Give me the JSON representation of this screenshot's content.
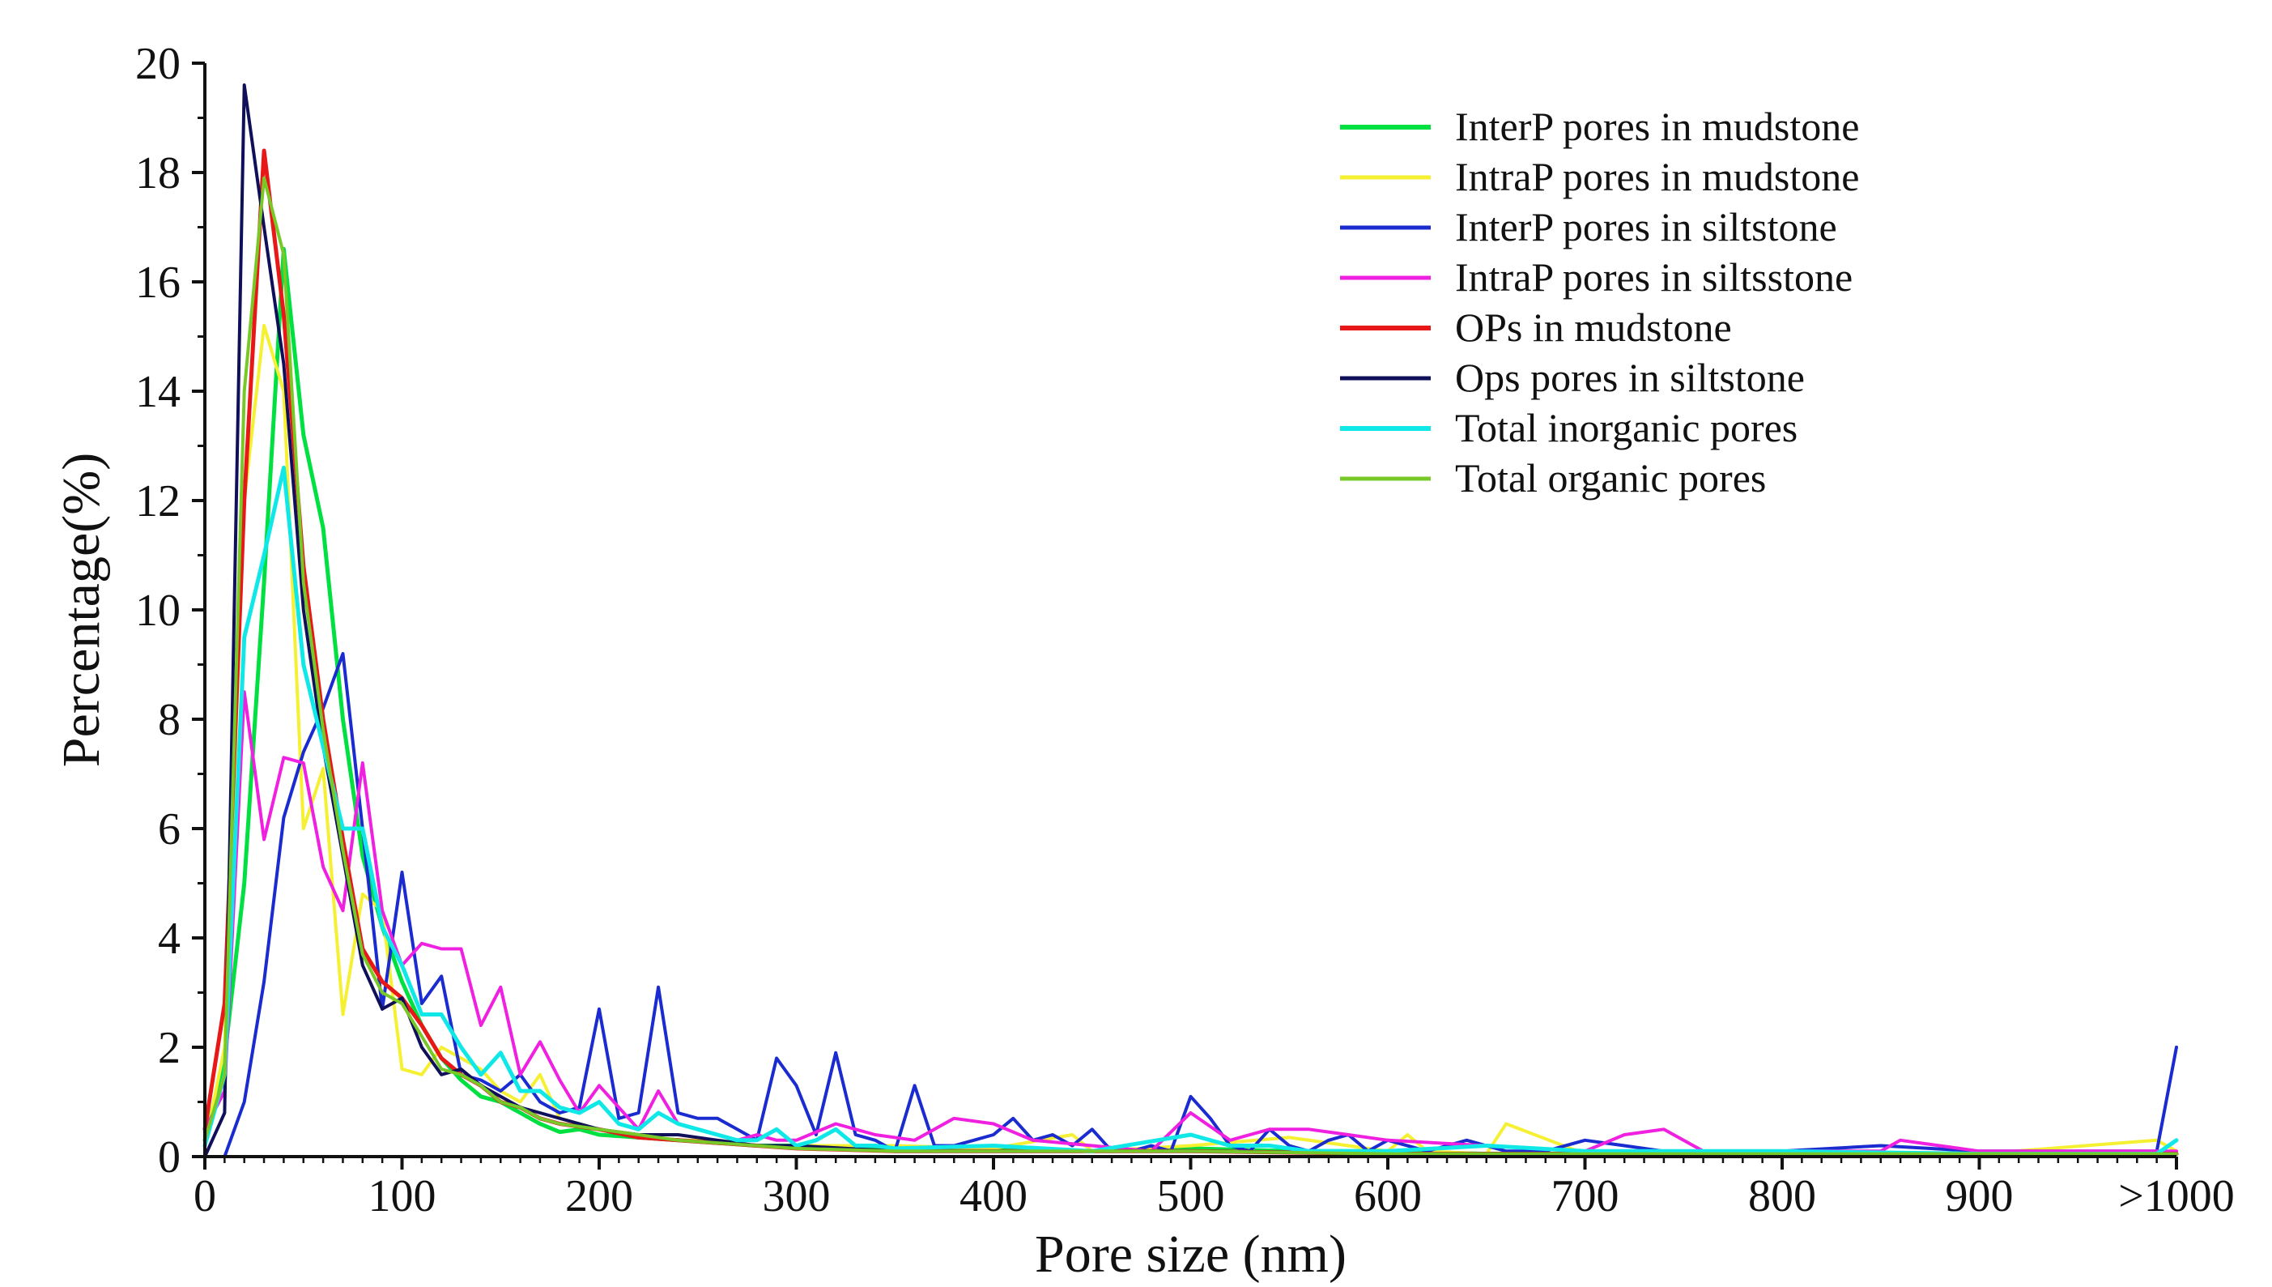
{
  "chart_data": {
    "type": "line",
    "title": "",
    "xlabel": "Pore size (nm)",
    "ylabel": "Percentage(%)",
    "xlim": [
      0,
      1000
    ],
    "ylim": [
      0,
      20
    ],
    "x_ticks": [
      0,
      100,
      200,
      300,
      400,
      500,
      600,
      700,
      800,
      900,
      1000
    ],
    "x_tick_labels": [
      "0",
      "100",
      "200",
      "300",
      "400",
      "500",
      "600",
      "700",
      "800",
      "900",
      ">1000"
    ],
    "y_ticks": [
      0,
      2,
      4,
      6,
      8,
      10,
      12,
      14,
      16,
      18,
      20
    ],
    "y_tick_labels": [
      "0",
      "2",
      "4",
      "6",
      "8",
      "10",
      "12",
      "14",
      "16",
      "18",
      "20"
    ],
    "legend_position": "top-right",
    "grid": false,
    "series": [
      {
        "name": "InterP pores in mudstone",
        "color": "#00e040",
        "stroke_width": 5,
        "x": [
          0,
          10,
          20,
          30,
          40,
          50,
          60,
          70,
          80,
          90,
          100,
          110,
          120,
          130,
          140,
          150,
          160,
          170,
          180,
          190,
          200,
          220,
          240,
          260,
          280,
          300,
          350,
          400,
          450,
          500,
          550,
          600,
          650,
          700,
          800,
          900,
          1000
        ],
        "values": [
          0.3,
          1.8,
          5.0,
          10.5,
          16.6,
          13.2,
          11.5,
          8.0,
          5.5,
          4.2,
          3.2,
          2.4,
          1.8,
          1.4,
          1.1,
          1.0,
          0.8,
          0.6,
          0.45,
          0.5,
          0.4,
          0.35,
          0.3,
          0.25,
          0.2,
          0.2,
          0.15,
          0.15,
          0.1,
          0.15,
          0.1,
          0.1,
          0.05,
          0.05,
          0.05,
          0.05,
          0.05
        ]
      },
      {
        "name": "IntraP pores in mudstone",
        "color": "#f5f032",
        "stroke_width": 4,
        "x": [
          0,
          10,
          20,
          30,
          40,
          50,
          60,
          70,
          80,
          90,
          100,
          110,
          120,
          130,
          140,
          150,
          160,
          170,
          180,
          190,
          200,
          220,
          240,
          260,
          280,
          300,
          350,
          400,
          440,
          450,
          500,
          550,
          600,
          610,
          620,
          650,
          660,
          700,
          800,
          900,
          990,
          1000
        ],
        "values": [
          0.2,
          2.0,
          12.0,
          15.2,
          14.0,
          6.0,
          7.1,
          2.6,
          4.8,
          4.5,
          1.6,
          1.5,
          2.0,
          1.8,
          1.6,
          1.2,
          1.0,
          1.5,
          0.7,
          0.6,
          0.5,
          0.4,
          0.3,
          0.3,
          0.2,
          0.2,
          0.2,
          0.15,
          0.4,
          0.1,
          0.2,
          0.35,
          0.1,
          0.4,
          0.1,
          0.05,
          0.6,
          0.05,
          0.05,
          0.05,
          0.3,
          0.1
        ]
      },
      {
        "name": "InterP pores in siltstone",
        "color": "#1a2bd0",
        "stroke_width": 4,
        "x": [
          0,
          10,
          20,
          30,
          40,
          50,
          60,
          70,
          80,
          90,
          100,
          110,
          120,
          130,
          140,
          150,
          160,
          170,
          180,
          190,
          200,
          210,
          220,
          230,
          240,
          250,
          260,
          270,
          280,
          290,
          300,
          310,
          320,
          330,
          340,
          350,
          360,
          370,
          380,
          390,
          400,
          410,
          420,
          430,
          440,
          450,
          460,
          470,
          480,
          490,
          500,
          510,
          520,
          530,
          540,
          550,
          560,
          570,
          580,
          590,
          600,
          620,
          640,
          660,
          680,
          700,
          720,
          740,
          760,
          800,
          850,
          900,
          950,
          990,
          1000
        ],
        "values": [
          0,
          0,
          1.0,
          3.2,
          6.2,
          7.4,
          8.2,
          9.2,
          6.0,
          2.7,
          5.2,
          2.8,
          3.3,
          1.5,
          1.4,
          1.2,
          1.5,
          1.0,
          0.8,
          0.9,
          2.7,
          0.7,
          0.8,
          3.1,
          0.8,
          0.7,
          0.7,
          0.5,
          0.3,
          1.8,
          1.3,
          0.4,
          1.9,
          0.4,
          0.3,
          0.1,
          1.3,
          0.2,
          0.2,
          0.3,
          0.4,
          0.7,
          0.3,
          0.4,
          0.2,
          0.5,
          0.1,
          0.1,
          0.2,
          0.1,
          1.1,
          0.7,
          0.2,
          0.1,
          0.5,
          0.2,
          0.1,
          0.3,
          0.4,
          0.1,
          0.3,
          0.1,
          0.3,
          0.1,
          0.1,
          0.3,
          0.2,
          0.1,
          0.1,
          0.1,
          0.2,
          0.1,
          0.1,
          0.1,
          2.0
        ]
      },
      {
        "name": "IntraP pores in siltsstone",
        "color": "#f020e0",
        "stroke_width": 4,
        "x": [
          0,
          10,
          20,
          30,
          40,
          50,
          60,
          70,
          80,
          90,
          100,
          110,
          120,
          130,
          140,
          150,
          160,
          170,
          180,
          190,
          200,
          210,
          220,
          230,
          240,
          250,
          260,
          270,
          280,
          290,
          300,
          320,
          340,
          360,
          380,
          400,
          420,
          450,
          480,
          500,
          520,
          540,
          560,
          580,
          600,
          650,
          700,
          720,
          740,
          760,
          800,
          850,
          860,
          900,
          950,
          1000
        ],
        "values": [
          0.5,
          1.2,
          8.5,
          5.8,
          7.3,
          7.2,
          5.3,
          4.5,
          7.2,
          4.5,
          3.5,
          3.9,
          3.8,
          3.8,
          2.4,
          3.1,
          1.5,
          2.1,
          1.4,
          0.8,
          1.3,
          0.9,
          0.5,
          1.2,
          0.6,
          0.5,
          0.4,
          0.3,
          0.4,
          0.3,
          0.3,
          0.6,
          0.4,
          0.3,
          0.7,
          0.6,
          0.3,
          0.2,
          0.1,
          0.8,
          0.3,
          0.5,
          0.5,
          0.4,
          0.3,
          0.2,
          0.1,
          0.4,
          0.5,
          0.1,
          0.1,
          0.1,
          0.3,
          0.1,
          0.1,
          0.1
        ]
      },
      {
        "name": "OPs in mudstone",
        "color": "#e81818",
        "stroke_width": 5,
        "x": [
          0,
          10,
          20,
          30,
          40,
          50,
          60,
          70,
          80,
          90,
          100,
          110,
          120,
          130,
          140,
          150,
          160,
          170,
          180,
          190,
          200,
          220,
          240,
          260,
          280,
          300,
          350,
          400,
          450,
          500,
          600,
          700,
          800,
          900,
          1000
        ],
        "values": [
          0.5,
          2.8,
          12.0,
          18.4,
          15.4,
          10.8,
          8.0,
          5.8,
          3.8,
          3.2,
          2.9,
          2.4,
          1.8,
          1.5,
          1.3,
          1.0,
          0.9,
          0.7,
          0.6,
          0.55,
          0.5,
          0.35,
          0.3,
          0.25,
          0.2,
          0.15,
          0.1,
          0.1,
          0.1,
          0.1,
          0.05,
          0.05,
          0.05,
          0.05,
          0.05
        ]
      },
      {
        "name": "Ops pores in siltstone",
        "color": "#10105a",
        "stroke_width": 4,
        "x": [
          0,
          10,
          20,
          30,
          40,
          50,
          60,
          70,
          80,
          90,
          100,
          110,
          120,
          130,
          140,
          150,
          160,
          170,
          180,
          190,
          200,
          220,
          240,
          260,
          280,
          300,
          350,
          400,
          450,
          500,
          600,
          700,
          800,
          900,
          1000
        ],
        "values": [
          0,
          0.8,
          19.6,
          17.0,
          14.5,
          10.0,
          7.5,
          5.5,
          3.5,
          2.7,
          2.9,
          2.0,
          1.5,
          1.6,
          1.3,
          1.1,
          0.9,
          0.8,
          0.7,
          0.6,
          0.5,
          0.4,
          0.4,
          0.3,
          0.2,
          0.2,
          0.1,
          0.1,
          0.1,
          0.1,
          0.05,
          0.05,
          0.05,
          0.05,
          0.05
        ]
      },
      {
        "name": "Total inorganic pores",
        "color": "#10e8e8",
        "stroke_width": 5,
        "x": [
          0,
          10,
          20,
          30,
          40,
          50,
          60,
          70,
          80,
          90,
          100,
          110,
          120,
          130,
          140,
          150,
          160,
          170,
          180,
          190,
          200,
          210,
          220,
          230,
          240,
          250,
          260,
          270,
          280,
          290,
          300,
          310,
          320,
          330,
          340,
          350,
          400,
          450,
          500,
          520,
          540,
          560,
          600,
          650,
          700,
          750,
          800,
          900,
          990,
          1000
        ],
        "values": [
          0.2,
          1.5,
          9.5,
          11.0,
          12.6,
          9.0,
          7.5,
          6.0,
          6.0,
          4.2,
          3.5,
          2.6,
          2.6,
          2.0,
          1.5,
          1.9,
          1.2,
          1.2,
          0.9,
          0.8,
          1.0,
          0.6,
          0.5,
          0.8,
          0.6,
          0.5,
          0.4,
          0.3,
          0.3,
          0.5,
          0.2,
          0.3,
          0.5,
          0.2,
          0.2,
          0.15,
          0.2,
          0.1,
          0.4,
          0.2,
          0.2,
          0.1,
          0.1,
          0.2,
          0.1,
          0.1,
          0.1,
          0.05,
          0.05,
          0.3
        ]
      },
      {
        "name": "Total organic pores",
        "color": "#78c828",
        "stroke_width": 4,
        "x": [
          0,
          10,
          20,
          30,
          40,
          50,
          60,
          70,
          80,
          90,
          100,
          110,
          120,
          130,
          140,
          150,
          160,
          170,
          180,
          190,
          200,
          220,
          240,
          260,
          280,
          300,
          350,
          400,
          450,
          500,
          600,
          700,
          800,
          900,
          1000
        ],
        "values": [
          0.3,
          1.5,
          14.0,
          17.9,
          16.5,
          10.5,
          7.8,
          5.6,
          3.7,
          3.0,
          2.8,
          2.2,
          1.6,
          1.5,
          1.3,
          1.0,
          0.9,
          0.7,
          0.6,
          0.55,
          0.5,
          0.4,
          0.3,
          0.25,
          0.2,
          0.15,
          0.1,
          0.1,
          0.1,
          0.1,
          0.05,
          0.05,
          0.05,
          0.05,
          0.05
        ]
      }
    ]
  }
}
